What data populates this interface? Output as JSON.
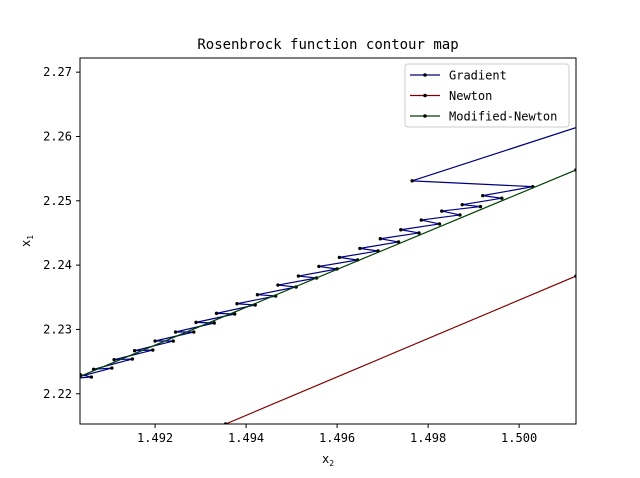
{
  "chart_data": {
    "type": "line",
    "title": "Rosenbrock function contour map",
    "xlabel": "x",
    "xlabel_sub": "2",
    "ylabel": "x",
    "ylabel_sub": "1",
    "xlim": [
      1.49035,
      1.50125
    ],
    "ylim": [
      2.2153,
      2.2722
    ],
    "xticks": [
      1.492,
      1.494,
      1.496,
      1.498,
      1.5
    ],
    "xtick_labels": [
      "1.492",
      "1.494",
      "1.496",
      "1.498",
      "1.500"
    ],
    "yticks": [
      2.22,
      2.23,
      2.24,
      2.25,
      2.26,
      2.27
    ],
    "ytick_labels": [
      "2.22",
      "2.23",
      "2.24",
      "2.25",
      "2.26",
      "2.27"
    ],
    "legend_position": "top-right",
    "series": [
      {
        "name": "Gradient",
        "color": "#00007f",
        "x": [
          1.5013,
          1.49765,
          1.5003,
          1.4992,
          1.49962,
          1.49875,
          1.49915,
          1.4983,
          1.4987,
          1.49785,
          1.49825,
          1.4974,
          1.4978,
          1.49695,
          1.49735,
          1.4965,
          1.4969,
          1.49605,
          1.49645,
          1.4956,
          1.496,
          1.49515,
          1.49555,
          1.4947,
          1.4951,
          1.49425,
          1.49465,
          1.4938,
          1.4942,
          1.49335,
          1.49375,
          1.4929,
          1.4933,
          1.49245,
          1.49285,
          1.492,
          1.4924,
          1.49155,
          1.49195,
          1.4911,
          1.4915,
          1.49065,
          1.49105,
          1.4902,
          1.4906,
          1.49035
        ],
        "y": [
          2.2615,
          2.2531,
          2.2522,
          2.2508,
          2.2504,
          2.2494,
          2.2491,
          2.2484,
          2.2478,
          2.247,
          2.2464,
          2.2455,
          2.245,
          2.2441,
          2.2436,
          2.2426,
          2.2422,
          2.2412,
          2.2408,
          2.2398,
          2.2394,
          2.2383,
          2.238,
          2.2369,
          2.2366,
          2.2354,
          2.2352,
          2.234,
          2.2338,
          2.2325,
          2.2324,
          2.2311,
          2.231,
          2.2296,
          2.2296,
          2.2282,
          2.2282,
          2.2267,
          2.2268,
          2.2253,
          2.2254,
          2.2238,
          2.224,
          2.2224,
          2.2226,
          2.223
        ]
      },
      {
        "name": "Newton",
        "color": "#7f0000",
        "x": [
          1.49355,
          1.50125
        ],
        "y": [
          2.2153,
          2.2383
        ]
      },
      {
        "name": "Modified-Newton",
        "color": "#004000",
        "x": [
          1.49035,
          1.50125
        ],
        "y": [
          2.2227,
          2.2548
        ]
      }
    ]
  }
}
